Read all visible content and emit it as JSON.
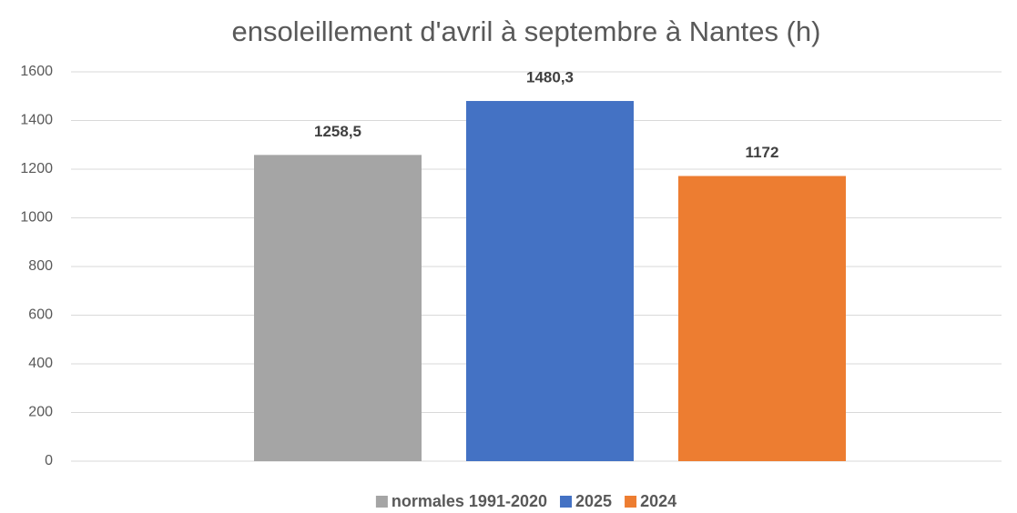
{
  "chart_data": {
    "type": "bar",
    "title": "ensoleillement d'avril à septembre à Nantes (h)",
    "categories": [
      null
    ],
    "series": [
      {
        "name": "normales 1991-2020",
        "color": "#a5a5a5",
        "values": [
          1258.5
        ],
        "value_labels": [
          "1258,5"
        ]
      },
      {
        "name": "2025",
        "color": "#4472c4",
        "values": [
          1480.3
        ],
        "value_labels": [
          "1480,3"
        ]
      },
      {
        "name": "2024",
        "color": "#ed7d31",
        "values": [
          1172
        ]
      }
    ],
    "ylim": [
      0,
      1600
    ],
    "yticks": [
      0,
      200,
      400,
      600,
      800,
      1000,
      1200,
      1400,
      1600
    ],
    "grid": true,
    "legend": "bottom"
  }
}
